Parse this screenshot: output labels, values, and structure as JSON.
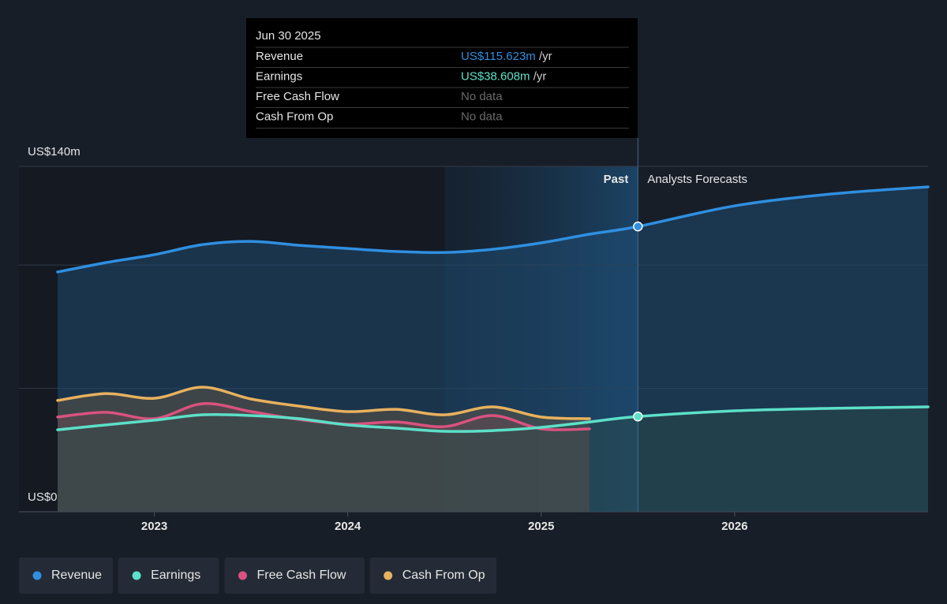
{
  "chart_data": {
    "type": "line",
    "x": [
      2022.5,
      2022.75,
      2023,
      2023.25,
      2023.5,
      2023.75,
      2024,
      2024.25,
      2024.5,
      2024.75,
      2025,
      2025.25,
      2025.5,
      2026,
      2026.5,
      2027
    ],
    "series": [
      {
        "name": "Revenue",
        "color": "#2f8fe0",
        "values": [
          97.2,
          101,
          104.2,
          108.3,
          109.6,
          108,
          106.7,
          105.5,
          105.1,
          106.4,
          109,
          112.5,
          115.623,
          124,
          128.8,
          131.7
        ]
      },
      {
        "name": "Earnings",
        "color": "#5ce0c8",
        "values": [
          33.2,
          35.2,
          37.1,
          39.3,
          39,
          37.7,
          35.2,
          33.9,
          32.6,
          32.9,
          34.2,
          36.4,
          38.608,
          40.9,
          41.9,
          42.5
        ]
      },
      {
        "name": "Free Cash Flow",
        "color": "#d9527f",
        "values": [
          38.4,
          40.3,
          37.7,
          43.8,
          40.6,
          37.4,
          35.5,
          36.4,
          34.5,
          39,
          33.6,
          33.6,
          null,
          null,
          null,
          null
        ]
      },
      {
        "name": "Cash From Op",
        "color": "#e8b15e",
        "values": [
          45.1,
          47.9,
          46,
          50.5,
          45.7,
          42.8,
          40.6,
          41.5,
          39.3,
          42.5,
          38.4,
          37.7,
          null,
          null,
          null,
          null
        ]
      }
    ],
    "xlim": [
      2022.3,
      2027
    ],
    "xticks": [
      2023,
      2024,
      2025,
      2026
    ],
    "ylim": [
      0,
      140
    ],
    "yticks": [
      {
        "value": 0,
        "label": "US$0"
      },
      {
        "value": 50,
        "label": null
      },
      {
        "value": 100,
        "label": null
      },
      {
        "value": 140,
        "label": "US$140m"
      }
    ],
    "grid": true,
    "forecast_start": 2025.5,
    "highlight_range": [
      2024.5,
      2025.5
    ],
    "past_label": "Past",
    "forecast_label": "Analysts Forecasts",
    "tooltip": {
      "title": "Jun 30 2025",
      "rows": [
        {
          "label": "Revenue",
          "value": "US$115.623m",
          "unit": "/yr"
        },
        {
          "label": "Earnings",
          "value": "US$38.608m",
          "unit": "/yr"
        },
        {
          "label": "Free Cash Flow",
          "value": "No data",
          "unit": null
        },
        {
          "label": "Cash From Op",
          "value": "No data",
          "unit": null
        }
      ]
    }
  }
}
